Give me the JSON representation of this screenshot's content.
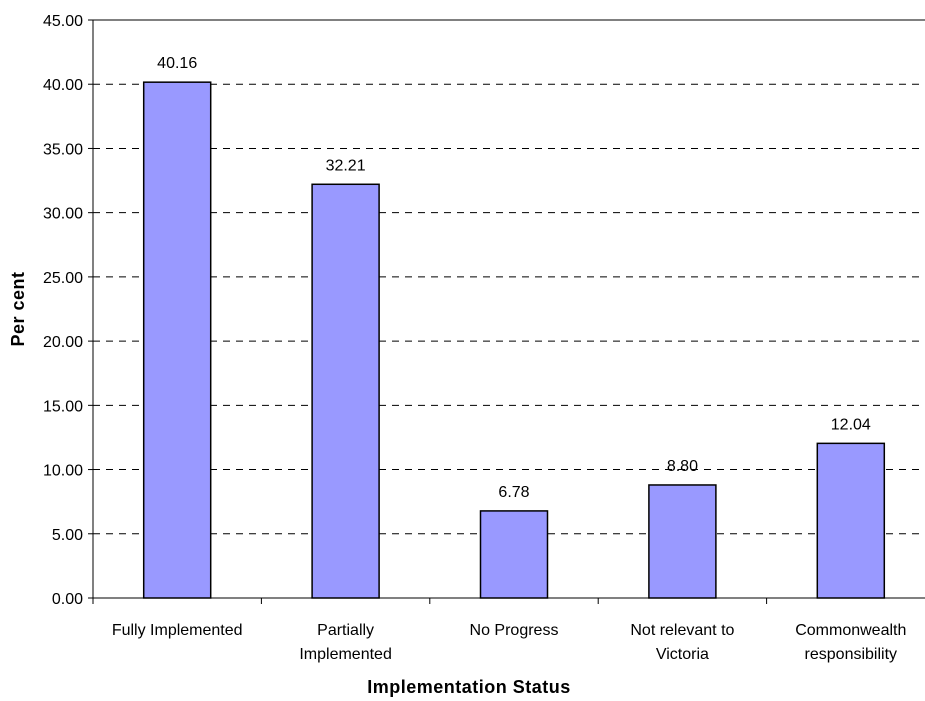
{
  "chart_data": {
    "type": "bar",
    "title": "",
    "xlabel": "Implementation Status",
    "ylabel": "Per cent",
    "categories": [
      [
        "Fully Implemented"
      ],
      [
        "Partially",
        "Implemented"
      ],
      [
        "No Progress"
      ],
      [
        "Not relevant to",
        "Victoria"
      ],
      [
        "Commonwealth",
        "responsibility"
      ]
    ],
    "values": [
      40.16,
      32.21,
      6.78,
      8.8,
      12.04
    ],
    "value_labels": [
      "40.16",
      "32.21",
      "6.78",
      "8.80",
      "12.04"
    ],
    "ylim": [
      0,
      45
    ],
    "yticks": [
      "0.00",
      "5.00",
      "10.00",
      "15.00",
      "20.00",
      "25.00",
      "30.00",
      "35.00",
      "40.00",
      "45.00"
    ],
    "grid": "horizontal dashed",
    "legend": "none",
    "bar_color": "#9999ff",
    "bar_edge_color": "#000000"
  }
}
